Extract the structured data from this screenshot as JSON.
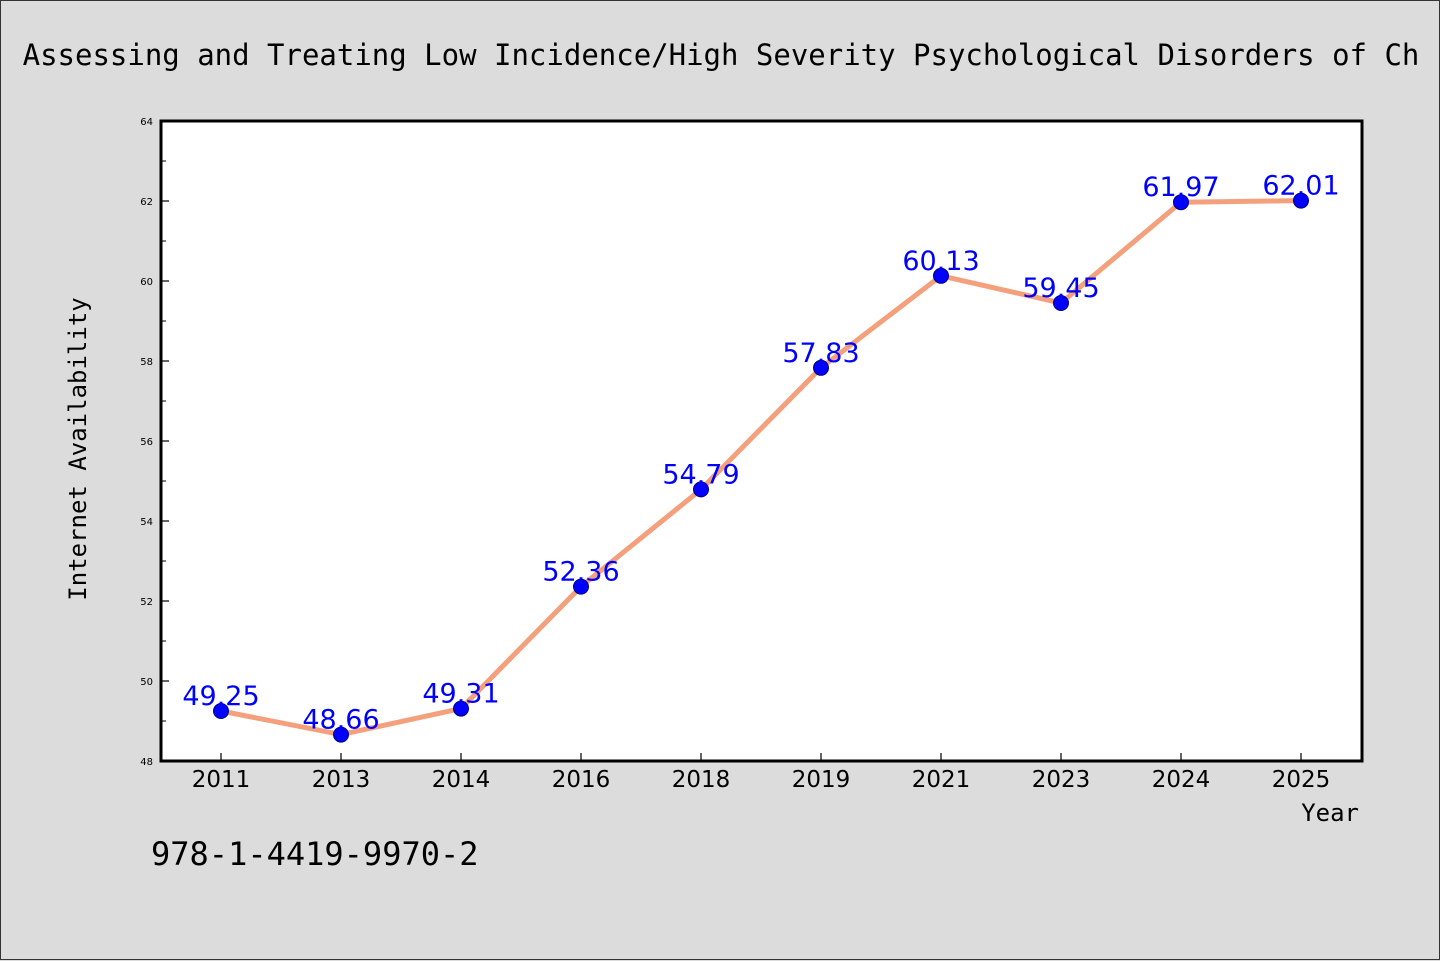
{
  "chart_data": {
    "type": "line",
    "title": "Assessing and Treating Low Incidence/High Severity Psychological Disorders of Ch",
    "xlabel": "Year",
    "ylabel": "Internet Availability",
    "categories": [
      "2011",
      "2013",
      "2014",
      "2016",
      "2018",
      "2019",
      "2021",
      "2023",
      "2024",
      "2025"
    ],
    "series": [
      {
        "values": [
          49.25,
          48.66,
          49.31,
          52.36,
          54.79,
          57.83,
          60.13,
          59.45,
          61.97,
          62.01
        ],
        "line_color": "#f4a07c",
        "marker_color": "#0000ff"
      }
    ],
    "data_labels": [
      "49.25",
      "48.66",
      "49.31",
      "52.36",
      "54.79",
      "57.83",
      "60.13",
      "59.45",
      "61.97",
      "62.01"
    ],
    "ylim": [
      48,
      64
    ],
    "yticks": [
      "48",
      "50",
      "52",
      "54",
      "56",
      "58",
      "60",
      "62",
      "64"
    ],
    "grid": false,
    "label_color": "#0000ff"
  },
  "annotation": "978-1-4419-9970-2"
}
